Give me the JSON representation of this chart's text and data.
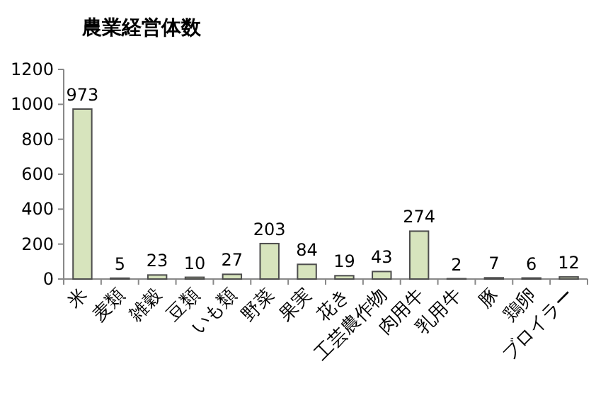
{
  "chart_data": {
    "type": "bar",
    "title": "農業経営体数",
    "categories": [
      "米",
      "麦類",
      "雑穀",
      "豆類",
      "いも類",
      "野菜",
      "果実",
      "花き",
      "工芸農作物",
      "肉用牛",
      "乳用牛",
      "豚",
      "鶏卵",
      "ブロイラー"
    ],
    "values": [
      973,
      5,
      23,
      10,
      27,
      203,
      84,
      19,
      43,
      274,
      2,
      7,
      6,
      12
    ],
    "color": "#d7e4bd",
    "ylim": [
      0,
      1200
    ],
    "yticks": [
      0,
      200,
      400,
      600,
      800,
      1000,
      1200
    ],
    "grid": false,
    "data_labels": true
  }
}
